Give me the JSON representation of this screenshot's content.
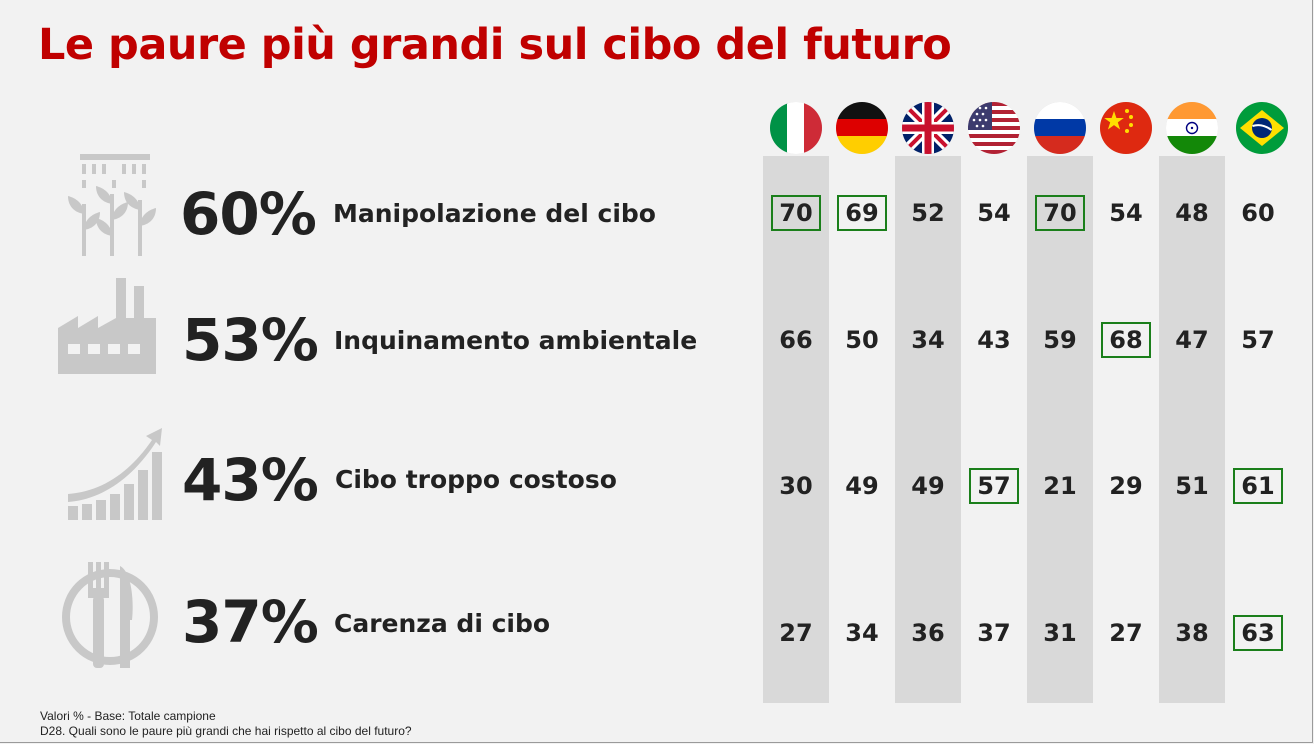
{
  "title": "Le paure più grandi sul cibo del futuro",
  "columns": [
    {
      "flag": "italy-flag-icon"
    },
    {
      "flag": "germany-flag-icon"
    },
    {
      "flag": "united-kingdom-flag-icon"
    },
    {
      "flag": "united-states-flag-icon"
    },
    {
      "flag": "russia-flag-icon"
    },
    {
      "flag": "china-flag-icon"
    },
    {
      "flag": "india-flag-icon"
    },
    {
      "flag": "brazil-flag-icon"
    }
  ],
  "chart_data": {
    "type": "table",
    "rows": [
      {
        "icon": "sprinkler-plants-icon",
        "total": "60%",
        "label": "Manipolazione del cibo",
        "values": [
          70,
          69,
          52,
          54,
          70,
          54,
          48,
          60
        ],
        "highlighted": [
          true,
          true,
          false,
          false,
          true,
          false,
          false,
          false
        ]
      },
      {
        "icon": "factory-icon",
        "total": "53%",
        "label": "Inquinamento ambientale",
        "values": [
          66,
          50,
          34,
          43,
          59,
          68,
          47,
          57
        ],
        "highlighted": [
          false,
          false,
          false,
          false,
          false,
          true,
          false,
          false
        ]
      },
      {
        "icon": "rising-bars-arrow-icon",
        "total": "43%",
        "label": "Cibo troppo costoso",
        "values": [
          30,
          49,
          49,
          57,
          21,
          29,
          51,
          61
        ],
        "highlighted": [
          false,
          false,
          false,
          true,
          false,
          false,
          false,
          true
        ]
      },
      {
        "icon": "plate-fork-knife-icon",
        "total": "37%",
        "label": "Carenza di cibo",
        "values": [
          27,
          34,
          36,
          37,
          31,
          27,
          38,
          63
        ],
        "highlighted": [
          false,
          false,
          false,
          false,
          false,
          false,
          false,
          true
        ]
      }
    ],
    "colors": {
      "title": "#c00000",
      "highlight_box": "#1b7f1b",
      "column_band": "#d9d9d9",
      "icon": "#c8c8c8"
    }
  },
  "footnote": {
    "line1": "Valori % - Base: Totale campione",
    "line2": "D28. Quali sono le paure più grandi che hai rispetto al cibo del futuro?"
  }
}
